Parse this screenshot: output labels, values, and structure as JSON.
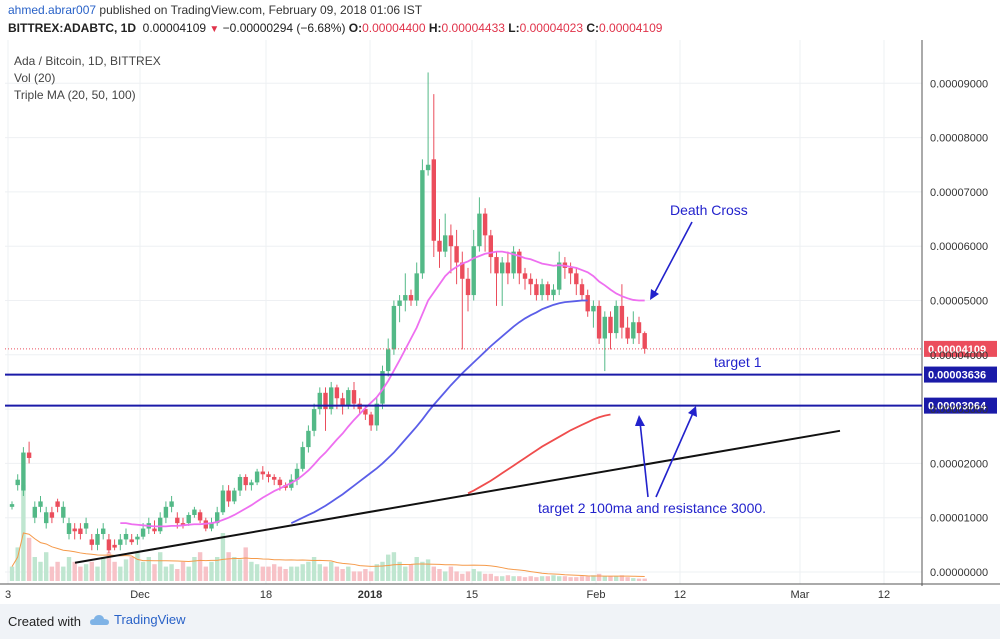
{
  "header": {
    "author": "ahmed.abrar007",
    "published": "published on TradingView.com, February 09, 2018 01:06 IST",
    "symbol": "BITTREX:ADABTC, 1D",
    "last": "0.00004109",
    "change": "−0.00000294 (−6.68%)",
    "o_label": "O:",
    "o_value": "0.00004400",
    "h_label": "H:",
    "h_value": "0.00004433",
    "l_label": "L:",
    "l_value": "0.00004023",
    "c_label": "C:",
    "c_value": "0.00004109"
  },
  "legend": {
    "title": "Ada / Bitcoin, 1D, BITTREX",
    "vol": "Vol (20)",
    "tma": "Triple MA (20, 50, 100)"
  },
  "footer": {
    "created": "Created with",
    "brand": "TradingView"
  },
  "colors": {
    "up": "#53b987",
    "down": "#eb4d5c",
    "ma20": "#ee6ff0",
    "ma50": "#5b5ee8",
    "ma100": "#ef4d4d",
    "level": "#1a1aa8",
    "annotation": "#2222cc"
  },
  "chart_data": {
    "type": "candlestick",
    "title": "Ada / Bitcoin, 1D, BITTREX",
    "ylim": [
      0,
      0.0001
    ],
    "y_ticks": [
      "0.00000000",
      "0.00001000",
      "0.00002000",
      "0.00003000",
      "0.00004000",
      "0.00005000",
      "0.00006000",
      "0.00007000",
      "0.00008000",
      "0.00009000"
    ],
    "x_ticks": [
      "3",
      "Dec",
      "18",
      "2018",
      "15",
      "Feb",
      "12",
      "Mar",
      "12"
    ],
    "last_price_label": "0.00004109",
    "candles": [
      [
        1.2,
        1.25,
        1.3,
        1.15
      ],
      [
        1.6,
        1.7,
        1.8,
        1.5
      ],
      [
        1.5,
        2.2,
        2.3,
        1.4
      ],
      [
        2.2,
        2.1,
        2.4,
        2.0
      ],
      [
        1.0,
        1.2,
        1.3,
        0.9
      ],
      [
        1.2,
        1.3,
        1.4,
        1.1
      ],
      [
        0.9,
        1.1,
        1.2,
        0.8
      ],
      [
        1.1,
        1.0,
        1.2,
        0.9
      ],
      [
        1.3,
        1.2,
        1.35,
        1.1
      ],
      [
        1.0,
        1.2,
        1.3,
        0.9
      ],
      [
        0.7,
        0.9,
        1.0,
        0.6
      ],
      [
        0.8,
        0.75,
        0.9,
        0.6
      ],
      [
        0.8,
        0.7,
        0.9,
        0.6
      ],
      [
        0.8,
        0.9,
        1.0,
        0.7
      ],
      [
        0.6,
        0.5,
        0.7,
        0.4
      ],
      [
        0.5,
        0.7,
        0.8,
        0.4
      ],
      [
        0.7,
        0.8,
        0.9,
        0.6
      ],
      [
        0.6,
        0.4,
        0.7,
        0.35
      ],
      [
        0.5,
        0.45,
        0.6,
        0.4
      ],
      [
        0.5,
        0.6,
        0.7,
        0.4
      ],
      [
        0.6,
        0.7,
        0.8,
        0.5
      ],
      [
        0.6,
        0.55,
        0.7,
        0.5
      ],
      [
        0.6,
        0.65,
        0.7,
        0.5
      ],
      [
        0.65,
        0.8,
        0.9,
        0.6
      ],
      [
        0.8,
        0.9,
        1.0,
        0.7
      ],
      [
        0.8,
        0.75,
        0.95,
        0.7
      ],
      [
        0.75,
        1.0,
        1.1,
        0.7
      ],
      [
        1.0,
        1.2,
        1.3,
        0.9
      ],
      [
        1.2,
        1.3,
        1.4,
        1.1
      ],
      [
        1.0,
        0.9,
        1.1,
        0.8
      ],
      [
        0.9,
        0.85,
        1.0,
        0.8
      ],
      [
        0.9,
        1.05,
        1.1,
        0.85
      ],
      [
        1.05,
        1.15,
        1.2,
        1.0
      ],
      [
        1.1,
        0.95,
        1.15,
        0.9
      ],
      [
        0.95,
        0.8,
        1.0,
        0.75
      ],
      [
        0.8,
        0.9,
        1.0,
        0.75
      ],
      [
        0.9,
        1.1,
        1.2,
        0.85
      ],
      [
        1.1,
        1.5,
        1.6,
        1.05
      ],
      [
        1.5,
        1.3,
        1.6,
        1.2
      ],
      [
        1.3,
        1.5,
        1.55,
        1.25
      ],
      [
        1.5,
        1.75,
        1.8,
        1.4
      ],
      [
        1.75,
        1.6,
        1.8,
        1.5
      ],
      [
        1.6,
        1.65,
        1.7,
        1.5
      ],
      [
        1.65,
        1.85,
        1.9,
        1.6
      ],
      [
        1.85,
        1.8,
        1.95,
        1.7
      ],
      [
        1.8,
        1.75,
        1.85,
        1.65
      ],
      [
        1.75,
        1.7,
        1.8,
        1.6
      ],
      [
        1.7,
        1.6,
        1.75,
        1.5
      ],
      [
        1.6,
        1.55,
        1.65,
        1.5
      ],
      [
        1.55,
        1.7,
        1.8,
        1.5
      ],
      [
        1.7,
        1.9,
        2.0,
        1.6
      ],
      [
        1.9,
        2.3,
        2.4,
        1.85
      ],
      [
        2.3,
        2.6,
        2.7,
        2.2
      ],
      [
        2.6,
        3.0,
        3.1,
        2.5
      ],
      [
        3.0,
        3.3,
        3.4,
        2.9
      ],
      [
        3.3,
        3.0,
        3.4,
        2.6
      ],
      [
        3.0,
        3.4,
        3.5,
        2.9
      ],
      [
        3.4,
        3.2,
        3.45,
        3.0
      ],
      [
        3.2,
        3.05,
        3.3,
        2.9
      ],
      [
        3.05,
        3.35,
        3.4,
        3.0
      ],
      [
        3.35,
        3.1,
        3.5,
        3.0
      ],
      [
        3.1,
        3.0,
        3.2,
        2.9
      ],
      [
        3.0,
        2.9,
        3.05,
        2.8
      ],
      [
        2.9,
        2.7,
        2.95,
        2.6
      ],
      [
        2.7,
        3.1,
        3.2,
        2.6
      ],
      [
        3.1,
        3.7,
        3.8,
        3.0
      ],
      [
        3.7,
        4.1,
        4.3,
        3.6
      ],
      [
        4.1,
        4.9,
        5.0,
        4.0
      ],
      [
        4.9,
        5.0,
        5.1,
        4.6
      ],
      [
        5.0,
        5.1,
        5.5,
        4.8
      ],
      [
        5.1,
        5.0,
        5.2,
        4.9
      ],
      [
        5.0,
        5.5,
        5.7,
        4.9
      ],
      [
        5.5,
        7.4,
        7.6,
        5.4
      ],
      [
        7.4,
        7.5,
        9.2,
        7.3
      ],
      [
        7.6,
        6.1,
        8.8,
        5.8
      ],
      [
        6.1,
        5.9,
        6.5,
        5.6
      ],
      [
        5.9,
        6.2,
        6.6,
        5.8
      ],
      [
        6.2,
        6.0,
        6.4,
        5.5
      ],
      [
        6.0,
        5.7,
        6.3,
        5.3
      ],
      [
        5.7,
        5.4,
        5.9,
        4.1
      ],
      [
        5.4,
        5.1,
        5.6,
        4.8
      ],
      [
        5.1,
        6.0,
        6.3,
        5.0
      ],
      [
        6.0,
        6.6,
        6.9,
        5.9
      ],
      [
        6.6,
        6.2,
        6.7,
        5.9
      ],
      [
        6.2,
        5.8,
        6.3,
        5.5
      ],
      [
        5.8,
        5.5,
        5.9,
        4.9
      ],
      [
        5.5,
        5.7,
        5.8,
        4.9
      ],
      [
        5.7,
        5.5,
        5.9,
        5.3
      ],
      [
        5.5,
        5.9,
        6.0,
        5.4
      ],
      [
        5.9,
        5.5,
        5.95,
        5.3
      ],
      [
        5.5,
        5.4,
        5.6,
        5.2
      ],
      [
        5.4,
        5.3,
        5.5,
        5.1
      ],
      [
        5.3,
        5.1,
        5.4,
        5.0
      ],
      [
        5.1,
        5.3,
        5.4,
        5.0
      ],
      [
        5.3,
        5.1,
        5.35,
        5.0
      ],
      [
        5.1,
        5.2,
        5.3,
        5.0
      ],
      [
        5.2,
        5.7,
        5.9,
        5.1
      ],
      [
        5.7,
        5.6,
        5.8,
        5.4
      ],
      [
        5.6,
        5.5,
        5.7,
        5.3
      ],
      [
        5.5,
        5.3,
        5.6,
        5.1
      ],
      [
        5.3,
        5.1,
        5.4,
        5.0
      ],
      [
        5.1,
        4.8,
        5.2,
        4.7
      ],
      [
        4.8,
        4.9,
        5.0,
        4.5
      ],
      [
        4.9,
        4.3,
        5.0,
        4.2
      ],
      [
        4.3,
        4.7,
        4.8,
        3.7
      ],
      [
        4.7,
        4.4,
        4.8,
        4.1
      ],
      [
        4.4,
        4.9,
        5.0,
        4.3
      ],
      [
        4.9,
        4.5,
        5.3,
        4.3
      ],
      [
        4.5,
        4.3,
        4.7,
        4.2
      ],
      [
        4.3,
        4.6,
        4.8,
        4.2
      ],
      [
        4.6,
        4.4,
        4.7,
        4.2
      ],
      [
        4.4,
        4.11,
        4.43,
        4.02
      ]
    ],
    "volumes": [
      0.3,
      0.7,
      2.0,
      0.9,
      0.5,
      0.4,
      0.6,
      0.3,
      0.4,
      0.3,
      0.5,
      0.4,
      0.3,
      0.35,
      0.4,
      0.3,
      0.5,
      0.6,
      0.4,
      0.3,
      0.45,
      0.5,
      0.6,
      0.4,
      0.5,
      0.35,
      0.6,
      0.3,
      0.35,
      0.25,
      0.4,
      0.3,
      0.5,
      0.6,
      0.3,
      0.4,
      0.5,
      1.0,
      0.6,
      0.5,
      0.45,
      0.7,
      0.4,
      0.35,
      0.3,
      0.3,
      0.35,
      0.3,
      0.25,
      0.3,
      0.3,
      0.35,
      0.4,
      0.5,
      0.35,
      0.3,
      0.4,
      0.3,
      0.25,
      0.3,
      0.2,
      0.2,
      0.25,
      0.2,
      0.35,
      0.4,
      0.55,
      0.6,
      0.4,
      0.3,
      0.35,
      0.5,
      0.4,
      0.45,
      0.3,
      0.25,
      0.2,
      0.3,
      0.2,
      0.15,
      0.2,
      0.25,
      0.2,
      0.15,
      0.15,
      0.1,
      0.1,
      0.12,
      0.1,
      0.1,
      0.08,
      0.1,
      0.08,
      0.1,
      0.1,
      0.12,
      0.1,
      0.1,
      0.08,
      0.08,
      0.1,
      0.1,
      0.12,
      0.15,
      0.1,
      0.1,
      0.1,
      0.12,
      0.08,
      0.06,
      0.05,
      0.05
    ],
    "series": [
      {
        "name": "MA 20",
        "values": [
          null,
          null,
          null,
          null,
          null,
          null,
          null,
          null,
          null,
          null,
          null,
          null,
          null,
          null,
          null,
          null,
          null,
          null,
          null,
          0.9,
          0.9,
          0.88,
          0.87,
          0.86,
          0.85,
          0.84,
          0.84,
          0.84,
          0.85,
          0.85,
          0.86,
          0.87,
          0.88,
          0.88,
          0.89,
          0.9,
          0.92,
          0.96,
          1.0,
          1.05,
          1.11,
          1.17,
          1.23,
          1.3,
          1.37,
          1.43,
          1.49,
          1.54,
          1.59,
          1.64,
          1.7,
          1.78,
          1.87,
          1.98,
          2.1,
          2.2,
          2.32,
          2.44,
          2.55,
          2.68,
          2.8,
          2.91,
          3.02,
          3.12,
          3.22,
          3.36,
          3.52,
          3.71,
          3.9,
          4.1,
          4.3,
          4.5,
          4.75,
          5.0,
          5.15,
          5.3,
          5.45,
          5.55,
          5.62,
          5.68,
          5.72,
          5.78,
          5.82,
          5.86,
          5.88,
          5.9,
          5.9,
          5.88,
          5.85,
          5.82,
          5.78,
          5.76,
          5.72,
          5.68,
          5.66,
          5.64,
          5.65,
          5.64,
          5.62,
          5.6,
          5.56,
          5.52,
          5.45,
          5.35,
          5.28,
          5.2,
          5.13,
          5.08,
          5.04,
          5.01,
          5.0,
          5.0
        ]
      },
      {
        "name": "MA 50",
        "values": [
          null,
          null,
          null,
          null,
          null,
          null,
          null,
          null,
          null,
          null,
          null,
          null,
          null,
          null,
          null,
          null,
          null,
          null,
          null,
          null,
          null,
          null,
          null,
          null,
          null,
          null,
          null,
          null,
          null,
          null,
          null,
          null,
          null,
          null,
          null,
          null,
          null,
          null,
          null,
          null,
          null,
          null,
          null,
          null,
          null,
          null,
          null,
          null,
          null,
          0.9,
          0.95,
          1.0,
          1.05,
          1.1,
          1.16,
          1.22,
          1.29,
          1.36,
          1.43,
          1.51,
          1.59,
          1.67,
          1.75,
          1.83,
          1.91,
          2.0,
          2.1,
          2.2,
          2.32,
          2.44,
          2.56,
          2.68,
          2.81,
          2.95,
          3.08,
          3.2,
          3.32,
          3.44,
          3.55,
          3.66,
          3.76,
          3.86,
          3.96,
          4.06,
          4.16,
          4.25,
          4.34,
          4.43,
          4.52,
          4.6,
          4.67,
          4.73,
          4.78,
          4.84,
          4.88,
          4.92,
          4.95,
          4.97,
          4.98,
          4.99,
          5.0,
          5.0
        ]
      },
      {
        "name": "MA 100",
        "values": [
          null,
          null,
          null,
          null,
          null,
          null,
          null,
          null,
          null,
          null,
          null,
          null,
          null,
          null,
          null,
          null,
          null,
          null,
          null,
          null,
          null,
          null,
          null,
          null,
          null,
          null,
          null,
          null,
          null,
          null,
          null,
          null,
          null,
          null,
          null,
          null,
          null,
          null,
          null,
          null,
          null,
          null,
          null,
          null,
          null,
          null,
          null,
          null,
          null,
          null,
          null,
          null,
          null,
          null,
          null,
          null,
          null,
          null,
          null,
          null,
          null,
          null,
          null,
          null,
          null,
          null,
          null,
          null,
          null,
          null,
          null,
          null,
          null,
          null,
          null,
          null,
          null,
          null,
          null,
          null,
          1.45,
          1.5,
          1.56,
          1.62,
          1.68,
          1.75,
          1.82,
          1.89,
          1.96,
          2.03,
          2.1,
          2.17,
          2.24,
          2.31,
          2.37,
          2.43,
          2.49,
          2.55,
          2.61,
          2.66,
          2.71,
          2.76,
          2.81,
          2.85,
          2.88,
          2.9
        ]
      }
    ],
    "levels": [
      {
        "value": 3.636e-05,
        "label": "0.00003636",
        "name": "target 1"
      },
      {
        "value": 3.064e-05,
        "label": "0.00003064"
      }
    ],
    "trendline": {
      "from": [
        75,
        1.7e-06
      ],
      "to": [
        840,
        2.6e-05
      ]
    },
    "annotations": {
      "death_cross": "Death Cross",
      "target1": "target 1",
      "target2": "target 2 100ma and resistance 3000."
    }
  }
}
